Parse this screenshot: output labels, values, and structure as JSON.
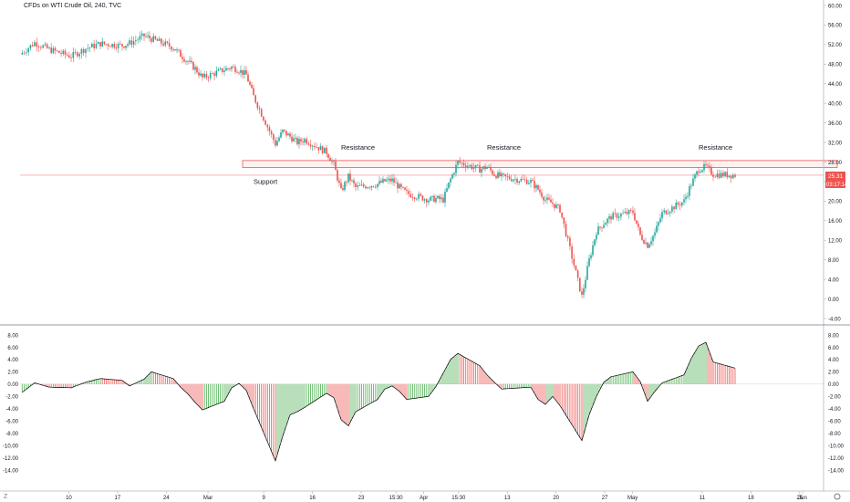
{
  "symbol_title": "CFDs on WTI Crude Oil, 240, TVC",
  "price_badge": {
    "value": "25.31",
    "countdown": "03:17:14",
    "color": "#ef5350"
  },
  "colors": {
    "up": "#26a69a",
    "down": "#ef5350",
    "osc_up": "#4caf50",
    "osc_down": "#ef5350",
    "zone": "#ef5350",
    "axis": "#131722"
  },
  "chart_data": [
    {
      "type": "candlestick",
      "title": "CFDs on WTI Crude Oil, 240, TVC",
      "y_axis_position": "right",
      "ylim": [
        -4,
        60
      ],
      "y_ticks": [
        "60.00",
        "56.00",
        "52.00",
        "48.00",
        "44.00",
        "40.00",
        "36.00",
        "32.00",
        "28.00",
        "24.00",
        "20.00",
        "16.00",
        "12.00",
        "8.00",
        "4.00",
        "0.00",
        "-4.00"
      ],
      "x_ticks": [
        "10",
        "17",
        "24",
        "Mar",
        "9",
        "16",
        "23",
        "15:30",
        "Apr",
        "15:30",
        "13",
        "20",
        "27",
        "May",
        "11",
        "18",
        "25",
        "Jun"
      ],
      "current_price": 25.31,
      "price_line": 25.31,
      "support_resistance_zone": [
        26.9,
        28.3
      ],
      "annotations": [
        {
          "text": "Resistance",
          "x": "2020-03-18",
          "y": 30.5
        },
        {
          "text": "Resistance",
          "x": "2020-04-07",
          "y": 30.5
        },
        {
          "text": "Resistance",
          "x": "2020-05-06",
          "y": 30.5
        },
        {
          "text": "Support",
          "x": "2020-03-06",
          "y": 23.5
        }
      ],
      "series": [
        {
          "close_path": [
            [
              "2020-02-03",
              50.0
            ],
            [
              "2020-02-05",
              52.4
            ],
            [
              "2020-02-07",
              51.0
            ],
            [
              "2020-02-10",
              49.6
            ],
            [
              "2020-02-12",
              51.2
            ],
            [
              "2020-02-14",
              52.2
            ],
            [
              "2020-02-17",
              51.8
            ],
            [
              "2020-02-18",
              52.3
            ],
            [
              "2020-02-20",
              53.8
            ],
            [
              "2020-02-21",
              53.2
            ],
            [
              "2020-02-24",
              51.4
            ],
            [
              "2020-02-25",
              49.9
            ],
            [
              "2020-02-26",
              48.5
            ],
            [
              "2020-02-27",
              47.1
            ],
            [
              "2020-02-28",
              45.2
            ],
            [
              "2020-03-02",
              46.9
            ],
            [
              "2020-03-03",
              47.4
            ],
            [
              "2020-03-04",
              46.8
            ],
            [
              "2020-03-05",
              45.8
            ],
            [
              "2020-03-06",
              41.4
            ],
            [
              "2020-03-09",
              31.7
            ],
            [
              "2020-03-10",
              34.3
            ],
            [
              "2020-03-11",
              33.2
            ],
            [
              "2020-03-12",
              32.0
            ],
            [
              "2020-03-13",
              32.6
            ],
            [
              "2020-03-16",
              30.0
            ],
            [
              "2020-03-17",
              27.5
            ],
            [
              "2020-03-18",
              22.0
            ],
            [
              "2020-03-19",
              25.0
            ],
            [
              "2020-03-20",
              22.8
            ],
            [
              "2020-03-23",
              23.5
            ],
            [
              "2020-03-24",
              24.1
            ],
            [
              "2020-03-25",
              24.3
            ],
            [
              "2020-03-26",
              22.8
            ],
            [
              "2020-03-27",
              21.6
            ],
            [
              "2020-03-30",
              20.3
            ],
            [
              "2020-03-31",
              20.5
            ],
            [
              "2020-04-01",
              20.3
            ],
            [
              "2020-04-02",
              24.5
            ],
            [
              "2020-04-03",
              28.0
            ],
            [
              "2020-04-06",
              26.5
            ],
            [
              "2020-04-07",
              27.0
            ],
            [
              "2020-04-08",
              25.5
            ],
            [
              "2020-04-09",
              25.0
            ],
            [
              "2020-04-13",
              24.0
            ],
            [
              "2020-04-14",
              22.4
            ],
            [
              "2020-04-15",
              20.3
            ],
            [
              "2020-04-16",
              19.5
            ],
            [
              "2020-04-17",
              18.3
            ],
            [
              "2020-04-20",
              0.5
            ],
            [
              "2020-04-21",
              8.0
            ],
            [
              "2020-04-22",
              13.8
            ],
            [
              "2020-04-23",
              15.5
            ],
            [
              "2020-04-24",
              16.8
            ],
            [
              "2020-04-27",
              17.8
            ],
            [
              "2020-04-28",
              13.0
            ],
            [
              "2020-04-29",
              11.0
            ],
            [
              "2020-04-30",
              13.5
            ],
            [
              "2020-05-01",
              17.5
            ],
            [
              "2020-05-04",
              20.0
            ],
            [
              "2020-05-05",
              23.5
            ],
            [
              "2020-05-06",
              26.5
            ],
            [
              "2020-05-07",
              27.0
            ],
            [
              "2020-05-08",
              25.5
            ],
            [
              "2020-05-11",
              25.31
            ]
          ]
        }
      ]
    },
    {
      "type": "bar",
      "title": "",
      "y_axis_position": "right",
      "ylim": [
        -14,
        8
      ],
      "y_ticks": [
        "8.00",
        "6.00",
        "4.00",
        "2.00",
        "0.00",
        "-2.00",
        "-4.00",
        "-6.00",
        "-8.00",
        "-10.00",
        "-12.00",
        "-14.00"
      ],
      "series": [
        {
          "outline_path": [
            [
              "2020-02-03",
              -1.6
            ],
            [
              "2020-02-05",
              0.2
            ],
            [
              "2020-02-07",
              -0.5
            ],
            [
              "2020-02-10",
              -0.6
            ],
            [
              "2020-02-12",
              0.3
            ],
            [
              "2020-02-14",
              0.9
            ],
            [
              "2020-02-17",
              0.6
            ],
            [
              "2020-02-18",
              -0.3
            ],
            [
              "2020-02-20",
              0.8
            ],
            [
              "2020-02-21",
              2.0
            ],
            [
              "2020-02-24",
              0.9
            ],
            [
              "2020-02-25",
              -0.5
            ],
            [
              "2020-02-26",
              -1.6
            ],
            [
              "2020-02-27",
              -3.0
            ],
            [
              "2020-02-28",
              -4.2
            ],
            [
              "2020-03-02",
              -2.8
            ],
            [
              "2020-03-03",
              -0.6
            ],
            [
              "2020-03-04",
              0.1
            ],
            [
              "2020-03-05",
              -1.0
            ],
            [
              "2020-03-06",
              -4.0
            ],
            [
              "2020-03-09",
              -12.5
            ],
            [
              "2020-03-10",
              -8.5
            ],
            [
              "2020-03-11",
              -5.0
            ],
            [
              "2020-03-12",
              -4.5
            ],
            [
              "2020-03-13",
              -3.8
            ],
            [
              "2020-03-16",
              -1.5
            ],
            [
              "2020-03-17",
              -2.2
            ],
            [
              "2020-03-18",
              -5.8
            ],
            [
              "2020-03-19",
              -6.8
            ],
            [
              "2020-03-20",
              -4.5
            ],
            [
              "2020-03-23",
              -2.5
            ],
            [
              "2020-03-24",
              -0.8
            ],
            [
              "2020-03-25",
              -0.3
            ],
            [
              "2020-03-26",
              -1.2
            ],
            [
              "2020-03-27",
              -2.5
            ],
            [
              "2020-03-30",
              -2.0
            ],
            [
              "2020-03-31",
              -0.4
            ],
            [
              "2020-04-01",
              1.8
            ],
            [
              "2020-04-02",
              4.0
            ],
            [
              "2020-04-03",
              5.0
            ],
            [
              "2020-04-06",
              3.0
            ],
            [
              "2020-04-07",
              1.5
            ],
            [
              "2020-04-08",
              0.3
            ],
            [
              "2020-04-09",
              -0.8
            ],
            [
              "2020-04-13",
              -0.5
            ],
            [
              "2020-04-14",
              -2.5
            ],
            [
              "2020-04-15",
              -3.3
            ],
            [
              "2020-04-16",
              -2.0
            ],
            [
              "2020-04-17",
              -3.5
            ],
            [
              "2020-04-20",
              -9.2
            ],
            [
              "2020-04-21",
              -5.0
            ],
            [
              "2020-04-22",
              -2.0
            ],
            [
              "2020-04-23",
              0.3
            ],
            [
              "2020-04-24",
              1.2
            ],
            [
              "2020-04-27",
              2.0
            ],
            [
              "2020-04-28",
              0.4
            ],
            [
              "2020-04-29",
              -2.8
            ],
            [
              "2020-04-30",
              -1.2
            ],
            [
              "2020-05-01",
              0.2
            ],
            [
              "2020-05-04",
              1.5
            ],
            [
              "2020-05-05",
              4.2
            ],
            [
              "2020-05-06",
              6.2
            ],
            [
              "2020-05-07",
              6.8
            ],
            [
              "2020-05-08",
              3.6
            ],
            [
              "2020-05-11",
              2.6
            ]
          ]
        }
      ]
    }
  ]
}
